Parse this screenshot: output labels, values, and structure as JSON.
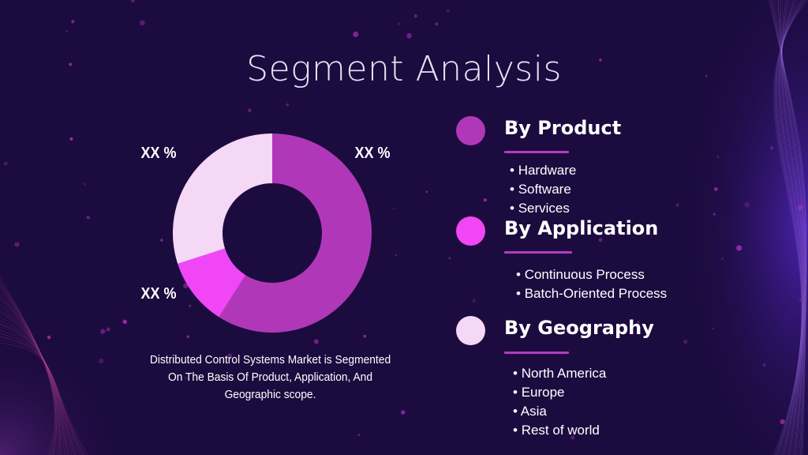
{
  "title": "Segment Analysis",
  "chart_data": {
    "type": "pie",
    "variant": "donut",
    "slices": [
      {
        "label": "XX %",
        "value": 59,
        "color": "#b038b8"
      },
      {
        "label": "XX %",
        "value": 11,
        "color": "#f146f6"
      },
      {
        "label": "XX %",
        "value": 30,
        "color": "#f5d7f6"
      }
    ]
  },
  "description": "Distributed Control Systems Market is Segmented On The Basis Of Product, Application, And Geographic scope.",
  "segments": [
    {
      "title": "By Product",
      "dot_color": "#b038b8",
      "items": [
        "Hardware",
        "Software",
        "Services"
      ]
    },
    {
      "title": "By Application",
      "dot_color": "#f146f6",
      "items": [
        "Continuous Process",
        "Batch-Oriented Process"
      ]
    },
    {
      "title": "By Geography",
      "dot_color": "#f5d7f6",
      "items": [
        "North America",
        "Europe",
        "Asia",
        "Rest of world"
      ]
    }
  ],
  "colors": {
    "background": "#1c0b3f",
    "accent": "#b43cbf"
  }
}
